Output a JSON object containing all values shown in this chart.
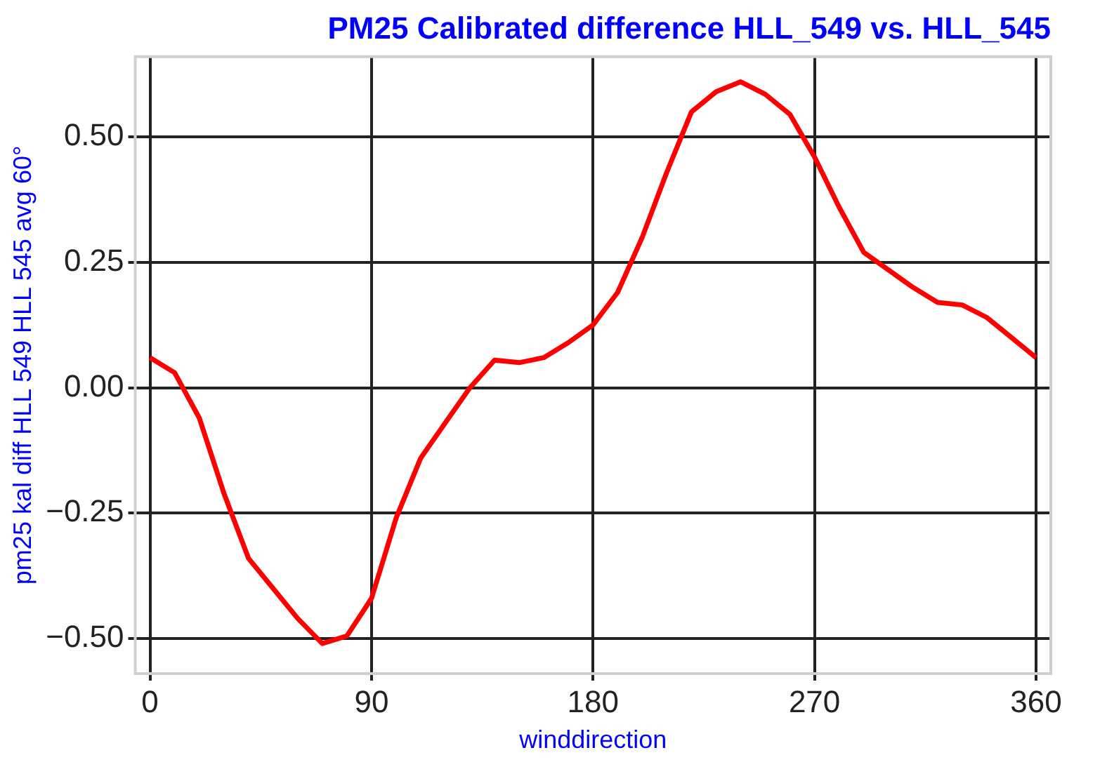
{
  "chart_data": {
    "type": "line",
    "title": "PM25 Calibrated difference HLL_549 vs. HLL_545",
    "xlabel": "winddirection",
    "ylabel": "pm25 kal diff HLL 549 HLL 545 avg 60°",
    "x": [
      0,
      10,
      20,
      30,
      40,
      50,
      60,
      70,
      80,
      90,
      100,
      110,
      120,
      130,
      140,
      150,
      160,
      170,
      180,
      190,
      200,
      210,
      220,
      230,
      240,
      250,
      260,
      270,
      280,
      290,
      300,
      310,
      320,
      330,
      340,
      350,
      360
    ],
    "series": [
      {
        "color": "#ff0000",
        "values": [
          0.06,
          0.03,
          -0.06,
          -0.21,
          -0.34,
          -0.4,
          -0.46,
          -0.51,
          -0.495,
          -0.42,
          -0.26,
          -0.14,
          -0.07,
          0.0,
          0.055,
          0.05,
          0.06,
          0.09,
          0.125,
          0.19,
          0.3,
          0.43,
          0.55,
          0.59,
          0.61,
          0.585,
          0.545,
          0.46,
          0.36,
          0.27,
          0.235,
          0.2,
          0.17,
          0.165,
          0.14,
          0.1,
          0.06
        ]
      }
    ],
    "xlim": [
      -6,
      366
    ],
    "xticks": [
      0,
      90,
      180,
      270,
      360
    ],
    "ylim": [
      -0.57,
      0.66
    ],
    "yticks": [
      {
        "value": -0.5,
        "label": "−0.50"
      },
      {
        "value": -0.25,
        "label": "−0.25"
      },
      {
        "value": 0,
        "label": "0.00"
      },
      {
        "value": 0.25,
        "label": "0.25"
      },
      {
        "value": 0.5,
        "label": "0.50"
      }
    ],
    "grid": true,
    "marker": "none",
    "line_style": "solid",
    "legend": false
  }
}
